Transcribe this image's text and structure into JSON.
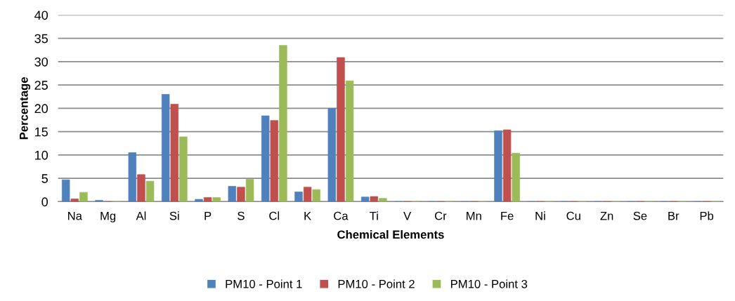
{
  "chart_data": {
    "type": "bar",
    "xlabel": "Chemical Elements",
    "ylabel": "Percentage",
    "categories": [
      "Na",
      "Mg",
      "Al",
      "Si",
      "P",
      "S",
      "Cl",
      "K",
      "Ca",
      "Ti",
      "V",
      "Cr",
      "Mn",
      "Fe",
      "Ni",
      "Cu",
      "Zn",
      "Se",
      "Br",
      "Pb"
    ],
    "series": [
      {
        "name": "PM10 - Point 1",
        "color": "#4f81bd",
        "values": [
          4.7,
          0.3,
          10.5,
          23.0,
          0.5,
          3.3,
          18.4,
          2.1,
          20.0,
          1.0,
          0,
          0,
          0,
          15.2,
          0,
          0,
          0,
          0,
          0,
          0
        ]
      },
      {
        "name": "PM10 - Point 2",
        "color": "#c0504d",
        "values": [
          0.6,
          0,
          5.8,
          20.9,
          0.9,
          3.1,
          17.4,
          3.1,
          30.9,
          1.1,
          0,
          0,
          0,
          15.4,
          0,
          0,
          0,
          0,
          0,
          0
        ]
      },
      {
        "name": "PM10 - Point 3",
        "color": "#9bbb59",
        "values": [
          2.0,
          0,
          4.4,
          13.9,
          0.9,
          4.8,
          33.5,
          2.6,
          25.9,
          0.7,
          0,
          0,
          0,
          10.4,
          0,
          0,
          0,
          0,
          0,
          0
        ]
      }
    ],
    "ylim": [
      0,
      40
    ],
    "yticks": [
      0,
      5,
      10,
      15,
      20,
      25,
      30,
      35,
      40
    ],
    "grid": "y",
    "legend": "bottom"
  }
}
